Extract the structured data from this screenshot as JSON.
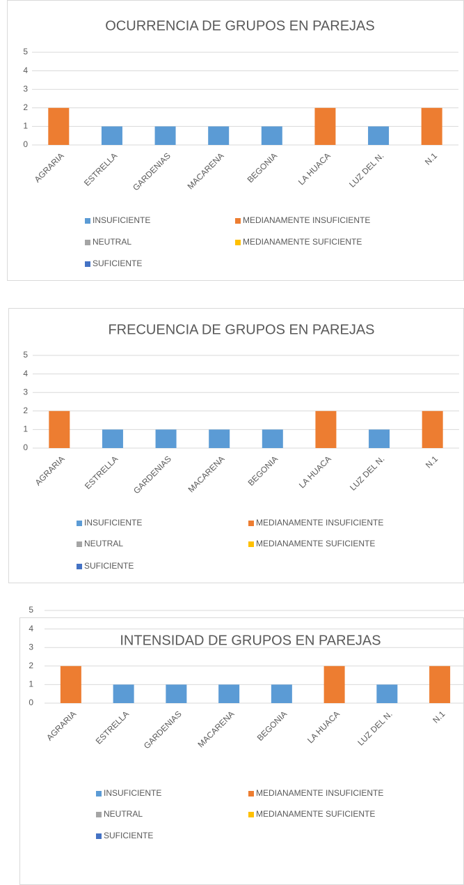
{
  "chart_data": [
    {
      "type": "bar",
      "title": "OCURRENCIA DE GRUPOS EN PAREJAS",
      "categories": [
        "AGRARIA",
        "ESTRELLA",
        "GARDENIAS",
        "MACARENA",
        "BEGONIA",
        "LA HUACA",
        "LUZ DEL N.",
        "N.1"
      ],
      "series": [
        {
          "name": "INSUFICIENTE",
          "color": "#5b9bd5",
          "values": [
            null,
            1,
            1,
            1,
            1,
            null,
            1,
            null
          ]
        },
        {
          "name": "MEDIANAMENTE INSUFICIENTE",
          "color": "#ed7d31",
          "values": [
            2,
            null,
            null,
            null,
            null,
            2,
            null,
            2
          ]
        },
        {
          "name": "NEUTRAL",
          "color": "#a5a5a5",
          "values": [
            null,
            null,
            null,
            null,
            null,
            null,
            null,
            null
          ]
        },
        {
          "name": "MEDIANAMENTE SUFICIENTE",
          "color": "#ffc000",
          "values": [
            null,
            null,
            null,
            null,
            null,
            null,
            null,
            null
          ]
        },
        {
          "name": "SUFICIENTE",
          "color": "#4472c4",
          "values": [
            null,
            null,
            null,
            null,
            null,
            null,
            null,
            null
          ]
        }
      ],
      "ylim": [
        0,
        5
      ],
      "yticks": [
        0,
        1,
        2,
        3,
        4,
        5
      ],
      "grid": true,
      "legend": "bottom"
    },
    {
      "type": "bar",
      "title": "FRECUENCIA DE GRUPOS EN PAREJAS",
      "categories": [
        "AGRARIA",
        "ESTRELLA",
        "GARDENIAS",
        "MACARENA",
        "BEGONIA",
        "LA HUACA",
        "LUZ DEL N.",
        "N.1"
      ],
      "series": [
        {
          "name": "INSUFICIENTE",
          "color": "#5b9bd5",
          "values": [
            null,
            1,
            1,
            1,
            1,
            null,
            1,
            null
          ]
        },
        {
          "name": "MEDIANAMENTE INSUFICIENTE",
          "color": "#ed7d31",
          "values": [
            2,
            null,
            null,
            null,
            null,
            2,
            null,
            2
          ]
        },
        {
          "name": "NEUTRAL",
          "color": "#a5a5a5",
          "values": [
            null,
            null,
            null,
            null,
            null,
            null,
            null,
            null
          ]
        },
        {
          "name": "MEDIANAMENTE SUFICIENTE",
          "color": "#ffc000",
          "values": [
            null,
            null,
            null,
            null,
            null,
            null,
            null,
            null
          ]
        },
        {
          "name": "SUFICIENTE",
          "color": "#4472c4",
          "values": [
            null,
            null,
            null,
            null,
            null,
            null,
            null,
            null
          ]
        }
      ],
      "ylim": [
        0,
        5
      ],
      "yticks": [
        0,
        1,
        2,
        3,
        4,
        5
      ],
      "grid": true,
      "legend": "bottom"
    },
    {
      "type": "bar",
      "title": "INTENSIDAD DE GRUPOS EN PAREJAS",
      "categories": [
        "AGRARIA",
        "ESTRELLA",
        "GARDENIAS",
        "MACARENA",
        "BEGONIA",
        "LA HUACA",
        "LUZ DEL N.",
        "N.1"
      ],
      "series": [
        {
          "name": "INSUFICIENTE",
          "color": "#5b9bd5",
          "values": [
            null,
            1,
            1,
            1,
            1,
            null,
            1,
            null
          ]
        },
        {
          "name": "MEDIANAMENTE INSUFICIENTE",
          "color": "#ed7d31",
          "values": [
            2,
            null,
            null,
            null,
            null,
            2,
            null,
            2
          ]
        },
        {
          "name": "NEUTRAL",
          "color": "#a5a5a5",
          "values": [
            null,
            null,
            null,
            null,
            null,
            null,
            null,
            null
          ]
        },
        {
          "name": "MEDIANAMENTE SUFICIENTE",
          "color": "#ffc000",
          "values": [
            null,
            null,
            null,
            null,
            null,
            null,
            null,
            null
          ]
        },
        {
          "name": "SUFICIENTE",
          "color": "#4472c4",
          "values": [
            null,
            null,
            null,
            null,
            null,
            null,
            null,
            null
          ]
        }
      ],
      "ylim": [
        0,
        5
      ],
      "yticks": [
        0,
        1,
        2,
        3,
        4,
        5
      ],
      "grid": true,
      "legend": "bottom"
    }
  ]
}
